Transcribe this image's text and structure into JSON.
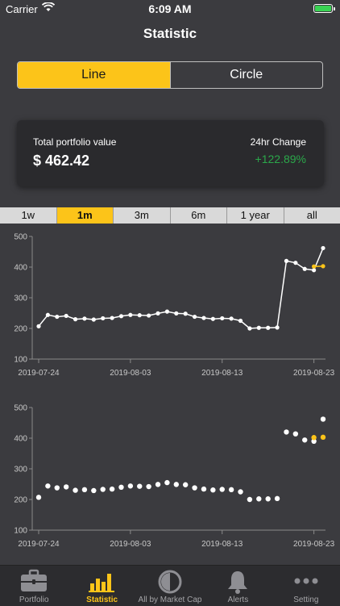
{
  "status_bar": {
    "carrier": "Carrier",
    "time": "6:09 AM"
  },
  "nav": {
    "title": "Statistic"
  },
  "segments": [
    {
      "label": "Line",
      "active": true
    },
    {
      "label": "Circle",
      "active": false
    }
  ],
  "summary": {
    "total_label": "Total portfolio value",
    "total_value": "$ 462.42",
    "change_label": "24hr Change",
    "change_value": "+122.89%"
  },
  "ranges": [
    {
      "label": "1w",
      "active": false
    },
    {
      "label": "1m",
      "active": true
    },
    {
      "label": "3m",
      "active": false
    },
    {
      "label": "6m",
      "active": false
    },
    {
      "label": "1 year",
      "active": false
    },
    {
      "label": "all",
      "active": false
    }
  ],
  "colors": {
    "accent": "#fcc419",
    "positive": "#2ba84a",
    "background": "#3b3b3f",
    "card": "#2a2a2d"
  },
  "chart_data": [
    {
      "type": "line",
      "ylim": [
        100,
        500
      ],
      "yticks": [
        100,
        200,
        300,
        400,
        500
      ],
      "xticks": [
        "2019-07-24",
        "2019-08-03",
        "2019-08-13",
        "2019-08-23"
      ],
      "series": [
        {
          "color": "#ffffff",
          "x": [
            0,
            1,
            2,
            3,
            4,
            5,
            6,
            7,
            8,
            9,
            10,
            11,
            12,
            13,
            14,
            15,
            16,
            17,
            18,
            19,
            20,
            21,
            22,
            23,
            24,
            25,
            26,
            27,
            28,
            29,
            30,
            31
          ],
          "values": [
            207,
            244,
            238,
            241,
            230,
            232,
            229,
            233,
            234,
            240,
            244,
            243,
            242,
            249,
            255,
            249,
            248,
            238,
            234,
            231,
            233,
            232,
            225,
            200,
            202,
            202,
            203,
            420,
            414,
            394,
            390,
            462
          ]
        },
        {
          "color": "#fcc419",
          "x": [
            30,
            31
          ],
          "values": [
            402,
            403
          ]
        }
      ]
    },
    {
      "type": "scatter",
      "ylim": [
        100,
        500
      ],
      "yticks": [
        100,
        200,
        300,
        400,
        500
      ],
      "xticks": [
        "2019-07-24",
        "2019-08-03",
        "2019-08-13",
        "2019-08-23"
      ],
      "series": [
        {
          "color": "#ffffff",
          "x": [
            0,
            1,
            2,
            3,
            4,
            5,
            6,
            7,
            8,
            9,
            10,
            11,
            12,
            13,
            14,
            15,
            16,
            17,
            18,
            19,
            20,
            21,
            22,
            23,
            24,
            25,
            26,
            27,
            28,
            29,
            30,
            31
          ],
          "values": [
            207,
            244,
            238,
            241,
            230,
            232,
            229,
            233,
            234,
            240,
            244,
            243,
            242,
            249,
            255,
            249,
            248,
            238,
            234,
            231,
            233,
            232,
            225,
            200,
            202,
            202,
            203,
            420,
            414,
            394,
            390,
            462
          ]
        },
        {
          "color": "#fcc419",
          "x": [
            30,
            31
          ],
          "values": [
            402,
            403
          ]
        }
      ]
    }
  ],
  "tabbar": [
    {
      "label": "Portfolio",
      "icon": "briefcase-icon",
      "active": false
    },
    {
      "label": "Statistic",
      "icon": "bar-chart-icon",
      "active": true
    },
    {
      "label": "All by Market Cap",
      "icon": "half-circle-icon",
      "active": false
    },
    {
      "label": "Alerts",
      "icon": "bell-icon",
      "active": false
    },
    {
      "label": "Setting",
      "icon": "more-icon",
      "active": false
    }
  ]
}
